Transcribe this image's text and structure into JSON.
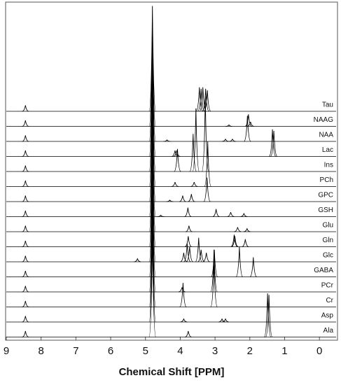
{
  "chart_data": {
    "type": "spectrum",
    "xlabel": "Chemical Shift [PPM]",
    "xlim": [
      9,
      -0.52
    ],
    "xticks": [
      9,
      8,
      7,
      6,
      5,
      4,
      3,
      2,
      1,
      0
    ],
    "color": "#000000",
    "series": [
      {
        "name": "Tau",
        "x": [
          8.45,
          4.8,
          3.45,
          3.4,
          3.35,
          3.27,
          3.22
        ],
        "values": [
          0.4,
          7,
          1.6,
          1.5,
          1.6,
          1.5,
          1.4
        ]
      },
      {
        "name": "NAAG",
        "x": [
          8.45,
          4.8,
          2.6,
          2.04,
          1.98
        ],
        "values": [
          0.4,
          7,
          0.1,
          0.8,
          0.3
        ]
      },
      {
        "name": "NAA",
        "x": [
          8.45,
          4.8,
          4.38,
          2.7,
          2.5,
          2.07
        ],
        "values": [
          0.4,
          7,
          0.1,
          0.15,
          0.15,
          1.7
        ]
      },
      {
        "name": "Lac",
        "x": [
          8.45,
          4.8,
          4.15,
          4.1,
          1.35,
          1.31
        ],
        "values": [
          0.4,
          7,
          0.4,
          0.4,
          1.8,
          1.7
        ]
      },
      {
        "name": "Ins",
        "x": [
          8.45,
          4.8,
          4.08,
          3.63,
          3.55,
          3.28
        ],
        "values": [
          0.4,
          7,
          1.5,
          2.5,
          4.2,
          5
        ]
      },
      {
        "name": "PCh",
        "x": [
          8.45,
          4.8,
          4.15,
          3.6,
          3.21
        ],
        "values": [
          0.4,
          7,
          0.3,
          0.3,
          3
        ]
      },
      {
        "name": "GPC",
        "x": [
          8.45,
          4.8,
          4.3,
          3.93,
          3.68,
          3.23
        ],
        "values": [
          0.4,
          7,
          0.1,
          0.4,
          0.5,
          1.6
        ]
      },
      {
        "name": "GSH",
        "x": [
          8.45,
          4.8,
          4.56,
          3.78,
          2.97,
          2.55,
          2.17
        ],
        "values": [
          0.4,
          7,
          0.1,
          0.6,
          0.5,
          0.3,
          0.2
        ]
      },
      {
        "name": "Glu",
        "x": [
          8.45,
          4.8,
          3.75,
          2.35,
          2.08
        ],
        "values": [
          0.4,
          7,
          0.4,
          0.3,
          0.2
        ]
      },
      {
        "name": "Gln",
        "x": [
          8.45,
          4.8,
          3.77,
          2.45,
          2.43,
          2.13
        ],
        "values": [
          0.4,
          7,
          0.7,
          0.8,
          0.7,
          0.5
        ]
      },
      {
        "name": "Glc",
        "x": [
          8.45,
          5.23,
          4.8,
          3.9,
          3.8,
          3.73,
          3.47,
          3.4,
          3.25
        ],
        "values": [
          0.4,
          0.2,
          7,
          0.6,
          1.2,
          1,
          1.6,
          0.8,
          0.6
        ]
      },
      {
        "name": "GABA",
        "x": [
          8.45,
          4.8,
          3.02,
          2.3,
          1.9
        ],
        "values": [
          0.4,
          7,
          1.8,
          2,
          1.3
        ]
      },
      {
        "name": "PCr",
        "x": [
          8.45,
          4.8,
          3.95,
          3.03
        ],
        "values": [
          0.4,
          7,
          0.3,
          2.8
        ]
      },
      {
        "name": "Cr",
        "x": [
          8.45,
          4.8,
          3.92,
          3.03
        ],
        "values": [
          0.4,
          7,
          1.6,
          3
        ]
      },
      {
        "name": "Asp",
        "x": [
          8.45,
          4.8,
          3.9,
          2.8,
          2.7
        ],
        "values": [
          0.4,
          7,
          0.2,
          0.2,
          0.2
        ]
      },
      {
        "name": "Ala",
        "x": [
          8.45,
          4.8,
          3.77,
          1.49,
          1.45
        ],
        "values": [
          0.4,
          7,
          0.4,
          2.9,
          2.8
        ]
      }
    ]
  }
}
